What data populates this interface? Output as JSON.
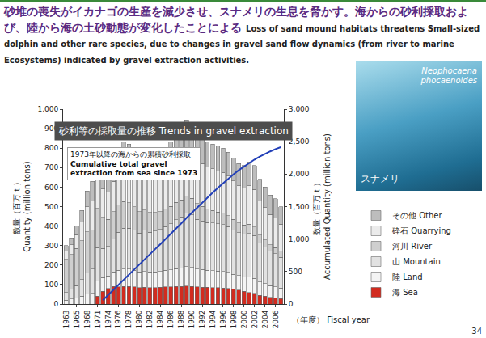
{
  "chart_data": {
    "type": "bar",
    "subtitle": "砂堆の喪失がイカナゴの生産を減少させ、スナメリの生息を脅かす。海からの砂利採取および、陸から海の土砂動態が変化したことによる Loss of sand mound habitats threatens Small-sized dolphin and other rare species, due to changes in gravel sand flow dynamics (from river to marine Ecosystems) indicated by gravel extraction activities.",
    "title": "砂利等の採取量の推移 Trends in gravel extraction",
    "photo_label": "スナメリ",
    "photo_species": "Neophocaena phocaenoides",
    "page": "34",
    "x_label": "（年度） Fiscal year",
    "y_label": [
      "数量（百万ｔ）",
      "Quantity (million tons)"
    ],
    "y2_label": [
      "数量（百万ｔ）",
      "Accumulated Quantity (million tons)"
    ],
    "categories": [
      "1963",
      null,
      "1965",
      null,
      "1968",
      null,
      "1971",
      null,
      "1974",
      null,
      "1976",
      null,
      "1978",
      null,
      "1980",
      null,
      "1982",
      null,
      "1984",
      null,
      "1986",
      null,
      "1988",
      null,
      "1990",
      null,
      "1992",
      null,
      "1994",
      null,
      "1996",
      null,
      "1998",
      null,
      "2000",
      null,
      "2002",
      null,
      "2004",
      null,
      "2006",
      null
    ],
    "series": [
      {
        "name": "海 Sea",
        "color": "#d22b1f",
        "values": [
          0,
          0,
          0,
          0,
          0,
          0,
          40,
          65,
          80,
          90,
          88,
          90,
          90,
          88,
          85,
          86,
          84,
          85,
          86,
          88,
          88,
          90,
          90,
          92,
          90,
          88,
          87,
          86,
          85,
          84,
          83,
          80,
          75,
          72,
          65,
          60,
          55,
          45,
          40,
          35,
          30,
          28
        ]
      },
      {
        "name": "陸 Land",
        "color": "#f4f4f4",
        "values": [
          20,
          25,
          30,
          40,
          50,
          55,
          80,
          70,
          65,
          75,
          85,
          90,
          90,
          85,
          80,
          82,
          80,
          80,
          82,
          85,
          88,
          92,
          95,
          100,
          98,
          92,
          90,
          88,
          86,
          85,
          84,
          82,
          78,
          75,
          75,
          78,
          76,
          68,
          64,
          60,
          58,
          54
        ]
      },
      {
        "name": "山 Mountain",
        "color": "#e2e2e2",
        "values": [
          40,
          50,
          65,
          85,
          110,
          125,
          170,
          150,
          150,
          170,
          195,
          210,
          210,
          205,
          200,
          210,
          205,
          210,
          215,
          225,
          235,
          250,
          262,
          275,
          270,
          255,
          250,
          245,
          245,
          242,
          240,
          235,
          228,
          220,
          218,
          225,
          220,
          200,
          188,
          176,
          170,
          158
        ]
      },
      {
        "name": "河川 River",
        "color": "#cfcfcf",
        "values": [
          170,
          180,
          190,
          200,
          210,
          200,
          200,
          160,
          140,
          140,
          140,
          135,
          130,
          120,
          110,
          105,
          100,
          95,
          92,
          90,
          90,
          90,
          88,
          88,
          85,
          80,
          75,
          70,
          65,
          62,
          60,
          57,
          53,
          50,
          48,
          47,
          45,
          40,
          37,
          34,
          32,
          30
        ]
      },
      {
        "name": "砕石 Quarrying",
        "color": "#ebebeb",
        "values": [
          40,
          50,
          70,
          95,
          130,
          150,
          190,
          145,
          140,
          155,
          180,
          195,
          195,
          190,
          185,
          192,
          190,
          195,
          198,
          202,
          212,
          223,
          233,
          245,
          240,
          225,
          220,
          215,
          212,
          210,
          208,
          203,
          197,
          190,
          190,
          196,
          192,
          175,
          165,
          155,
          150,
          140
        ]
      },
      {
        "name": "その他 Other",
        "color": "#bdbdbd",
        "values": [
          30,
          35,
          45,
          60,
          80,
          100,
          120,
          90,
          85,
          90,
          102,
          110,
          105,
          102,
          100,
          105,
          101,
          105,
          107,
          110,
          117,
          125,
          132,
          140,
          137,
          130,
          128,
          126,
          127,
          127,
          125,
          123,
          119,
          113,
          114,
          124,
          122,
          112,
          106,
          100,
          100,
          90
        ]
      },
      {
        "name": "1973年以降の海からの累積砂利採取 Cumulative total gravel extraction from sea since 1973",
        "type": "line",
        "axis": "y2",
        "color": "#2340b8",
        "values": [
          null,
          null,
          null,
          null,
          null,
          null,
          null,
          60,
          135,
          215,
          295,
          375,
          455,
          535,
          612,
          690,
          768,
          845,
          922,
          1000,
          1080,
          1160,
          1242,
          1325,
          1405,
          1485,
          1562,
          1640,
          1715,
          1790,
          1862,
          1932,
          1998,
          2062,
          2120,
          2175,
          2225,
          2270,
          2312,
          2350,
          2385,
          2415
        ]
      }
    ],
    "ylim": [
      0,
      1000
    ],
    "yticks": [
      0,
      100,
      200,
      300,
      400,
      500,
      600,
      700,
      800,
      900,
      {
        "value": 1000,
        "label": "1,000"
      }
    ],
    "y2lim": [
      0,
      3000
    ],
    "y2ticks": [
      0,
      500,
      {
        "value": 1000,
        "label": "1,000"
      },
      {
        "value": 1500,
        "label": "1,500"
      },
      {
        "value": 2000,
        "label": "2,000"
      },
      {
        "value": 2500,
        "label": "2,500"
      },
      {
        "value": 3000,
        "label": "3,000"
      }
    ],
    "stacked": true,
    "grid": false,
    "legend": "right"
  }
}
